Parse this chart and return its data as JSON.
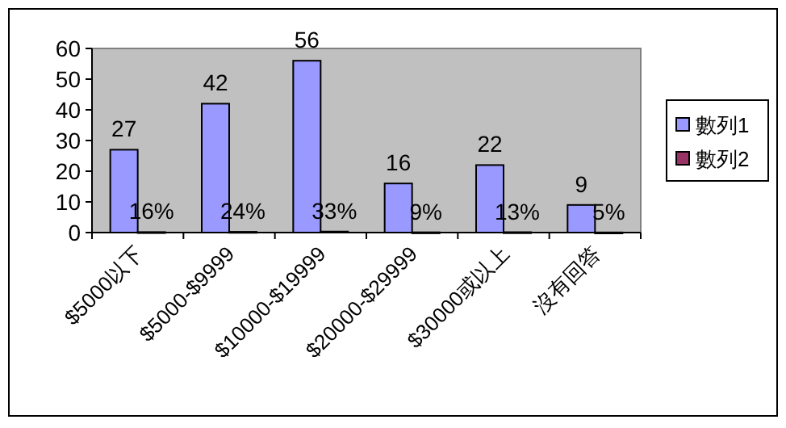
{
  "chart_data": {
    "type": "bar",
    "categories": [
      "$5000以下",
      "$5000-$9999",
      "$10000-$19999",
      "$20000-$29999",
      "$30000或以上",
      "沒有回答"
    ],
    "series": [
      {
        "name": "數列1",
        "color": "#9999ff",
        "values": [
          27,
          42,
          56,
          16,
          22,
          9
        ],
        "value_labels": [
          "27",
          "42",
          "56",
          "16",
          "22",
          "9"
        ]
      },
      {
        "name": "數列2",
        "color": "#993366",
        "values": [
          0.16,
          0.24,
          0.33,
          0.09,
          0.13,
          0.05
        ],
        "value_labels": [
          "16%",
          "24%",
          "33%",
          "9%",
          "13%",
          "5%"
        ]
      }
    ],
    "ylim": [
      0,
      60
    ],
    "yticks": [
      0,
      10,
      20,
      30,
      40,
      50,
      60
    ],
    "grid": false,
    "legend": "right"
  }
}
